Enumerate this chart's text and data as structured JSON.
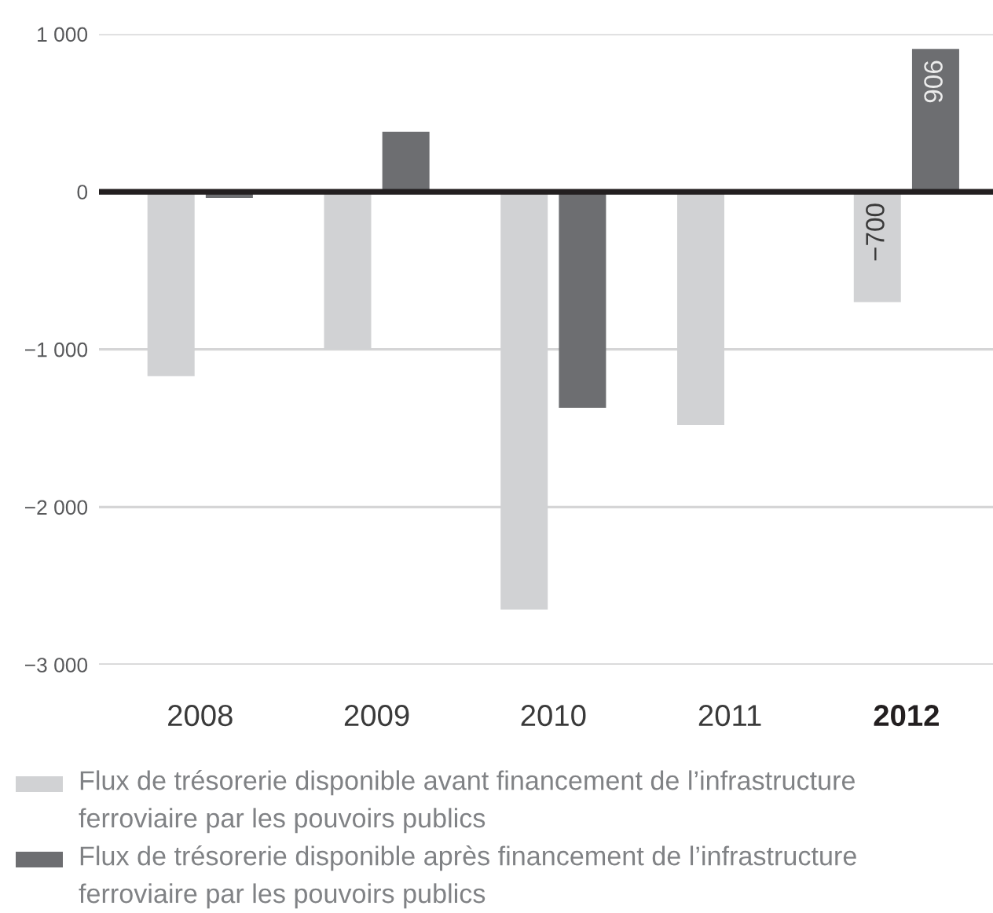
{
  "chart_data": {
    "type": "bar",
    "categories": [
      "2008",
      "2009",
      "2010",
      "2011",
      "2012"
    ],
    "series": [
      {
        "name": "Flux de trésorerie disponible avant financement de l’infrastructure ferroviaire par les pouvoirs publics",
        "color": "#d1d2d4",
        "values": [
          -1170,
          -1000,
          -2650,
          -1480,
          -700
        ],
        "value_labels": [
          null,
          null,
          null,
          null,
          "−700"
        ]
      },
      {
        "name": "Flux de trésorerie disponible après financement de l’infrastructure ferroviaire par les pouvoirs publics",
        "color": "#6d6e71",
        "values": [
          -40,
          380,
          -1370,
          null,
          906
        ],
        "value_labels": [
          null,
          null,
          null,
          null,
          "906"
        ]
      }
    ],
    "ylim": [
      -3000,
      1000
    ],
    "yticks": [
      {
        "value": 1000,
        "label": "1 000"
      },
      0,
      {
        "value": -1000,
        "label": "−1 000"
      },
      {
        "value": -2000,
        "label": "−2 000"
      },
      {
        "value": -3000,
        "label": "−3 000"
      }
    ],
    "grid": "y",
    "legend": "bottom",
    "ref_lines": [
      {
        "axis": "y",
        "value": 0,
        "color": "#231f20"
      }
    ]
  }
}
